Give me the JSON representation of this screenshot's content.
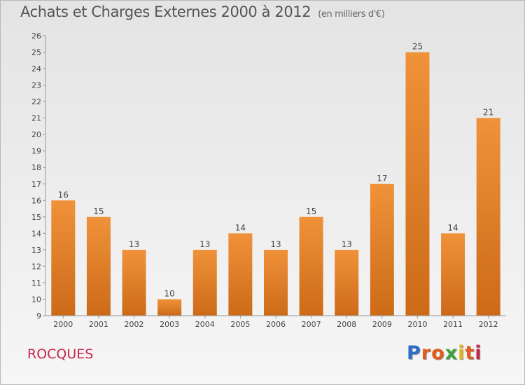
{
  "header": {
    "title": "Achats et Charges Externes 2000 à 2012",
    "unit": "(en milliers d'€)"
  },
  "footer": {
    "place": "ROCQUES",
    "brand_letters": [
      "P",
      "r",
      "o",
      "x",
      "i",
      "t",
      "i"
    ],
    "brand_colors": [
      "#2f6cc9",
      "#e65a1a",
      "#e65a1a",
      "#3aa43a",
      "#e6b21a",
      "#e65a1a",
      "#c8254e"
    ]
  },
  "chart_data": {
    "type": "bar",
    "categories": [
      "2000",
      "2001",
      "2002",
      "2003",
      "2004",
      "2005",
      "2006",
      "2007",
      "2008",
      "2009",
      "2010",
      "2011",
      "2012"
    ],
    "values": [
      16,
      15,
      13,
      10,
      13,
      14,
      13,
      15,
      13,
      17,
      25,
      14,
      21
    ],
    "ylim": [
      9,
      26
    ],
    "yticks": [
      9,
      10,
      11,
      12,
      13,
      14,
      15,
      16,
      17,
      18,
      19,
      20,
      21,
      22,
      23,
      24,
      25,
      26
    ],
    "grid": false,
    "bar_color": "#f0923a",
    "bar_color_dark": "#cc6a18"
  }
}
